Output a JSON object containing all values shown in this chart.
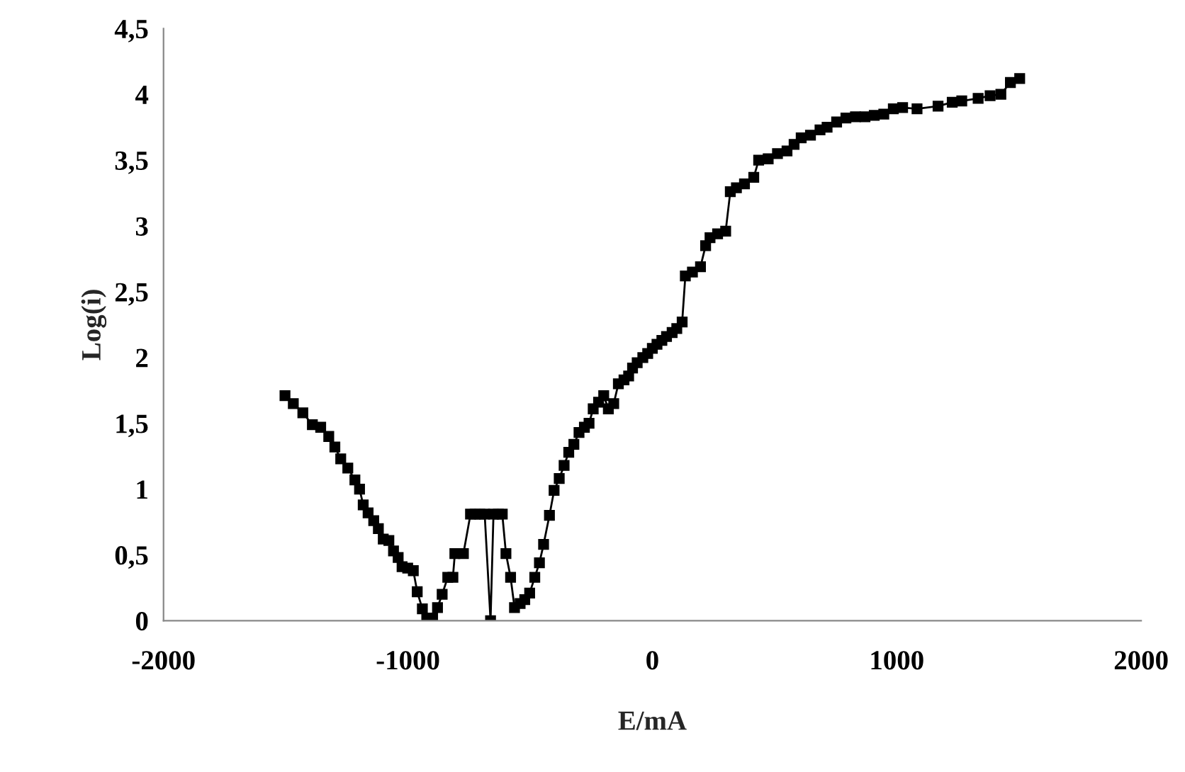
{
  "chart_data": {
    "type": "line",
    "xlabel": "E/mA",
    "ylabel": "Log(i)",
    "series": [
      {
        "color": "#000000",
        "x": [
          -1503,
          -1469,
          -1430,
          -1391,
          -1357,
          -1324,
          -1299,
          -1275,
          -1246,
          -1217,
          -1198,
          -1183,
          -1163,
          -1140,
          -1121,
          -1101,
          -1078,
          -1059,
          -1040,
          -1024,
          -1001,
          -978,
          -962,
          -941,
          -923,
          -899,
          -879,
          -860,
          -837,
          -816,
          -808,
          -773,
          -744,
          -725,
          -706,
          -686,
          -662,
          -650,
          -630,
          -614,
          -599,
          -580,
          -564,
          -541,
          -522,
          -502,
          -481,
          -462,
          -445,
          -421,
          -402,
          -381,
          -361,
          -342,
          -321,
          -300,
          -278,
          -259,
          -242,
          -220,
          -199,
          -180,
          -158,
          -139,
          -116,
          -97,
          -81,
          -62,
          -39,
          -19,
          0,
          19,
          39,
          58,
          81,
          100,
          122,
          135,
          164,
          197,
          218,
          236,
          267,
          300,
          319,
          344,
          377,
          415,
          435,
          474,
          512,
          551,
          580,
          609,
          647,
          686,
          715,
          754,
          792,
          831,
          870,
          908,
          947,
          986,
          1024,
          1083,
          1169,
          1227,
          1266,
          1333,
          1382,
          1426,
          1465,
          1503
        ],
        "values": [
          1.71,
          1.65,
          1.58,
          1.49,
          1.47,
          1.4,
          1.32,
          1.23,
          1.16,
          1.07,
          1.0,
          0.88,
          0.82,
          0.76,
          0.7,
          0.62,
          0.61,
          0.53,
          0.48,
          0.41,
          0.4,
          0.38,
          0.22,
          0.09,
          0.02,
          0.02,
          0.1,
          0.2,
          0.33,
          0.33,
          0.51,
          0.51,
          0.81,
          0.81,
          0.81,
          0.81,
          0.0,
          0.81,
          0.81,
          0.81,
          0.51,
          0.33,
          0.1,
          0.13,
          0.16,
          0.21,
          0.33,
          0.44,
          0.58,
          0.8,
          0.99,
          1.08,
          1.18,
          1.28,
          1.34,
          1.43,
          1.47,
          1.5,
          1.61,
          1.66,
          1.71,
          1.61,
          1.65,
          1.8,
          1.83,
          1.86,
          1.92,
          1.96,
          2.0,
          2.03,
          2.07,
          2.1,
          2.13,
          2.16,
          2.19,
          2.22,
          2.27,
          2.62,
          2.65,
          2.69,
          2.85,
          2.91,
          2.94,
          2.96,
          3.26,
          3.29,
          3.32,
          3.37,
          3.5,
          3.51,
          3.55,
          3.57,
          3.62,
          3.67,
          3.69,
          3.73,
          3.75,
          3.79,
          3.82,
          3.83,
          3.83,
          3.84,
          3.85,
          3.89,
          3.9,
          3.89,
          3.91,
          3.94,
          3.95,
          3.97,
          3.99,
          4.0,
          4.09,
          4.12
        ]
      }
    ],
    "xlim": [
      -2000,
      2000
    ],
    "xticks": [
      -2000,
      -1000,
      0,
      1000,
      2000
    ],
    "ylim": [
      0,
      4.5
    ],
    "yticks": [
      0,
      {
        "value": 0.5,
        "label": "0,5"
      },
      1,
      {
        "value": 1.5,
        "label": "1,5"
      },
      2,
      {
        "value": 2.5,
        "label": "2,5"
      },
      3,
      {
        "value": 3.5,
        "label": "3,5"
      },
      4,
      {
        "value": 4.5,
        "label": "4,5"
      }
    ],
    "marker": "square",
    "line_style": "solid",
    "grid": false,
    "legend": false
  }
}
